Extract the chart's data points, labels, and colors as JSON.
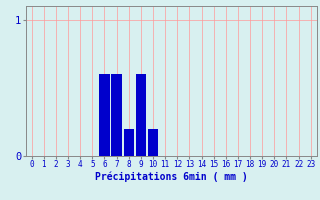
{
  "categories": [
    0,
    1,
    2,
    3,
    4,
    5,
    6,
    7,
    8,
    9,
    10,
    11,
    12,
    13,
    14,
    15,
    16,
    17,
    18,
    19,
    20,
    21,
    22,
    23
  ],
  "values": [
    0,
    0,
    0,
    0,
    0,
    0,
    0.6,
    0.6,
    0.2,
    0.6,
    0.2,
    0,
    0,
    0,
    0,
    0,
    0,
    0,
    0,
    0,
    0,
    0,
    0,
    0
  ],
  "bar_color": "#0000cc",
  "background_color": "#d8f0f0",
  "grid_color_v": "#ff9999",
  "grid_color_h": "#ff9999",
  "xlabel": "Précipitations 6min ( mm )",
  "ylabel": "",
  "ylim": [
    0,
    1.1
  ],
  "xlim": [
    -0.5,
    23.5
  ],
  "yticks": [
    0,
    1
  ],
  "ytick_labels": [
    "0",
    "1"
  ],
  "xticks": [
    0,
    1,
    2,
    3,
    4,
    5,
    6,
    7,
    8,
    9,
    10,
    11,
    12,
    13,
    14,
    15,
    16,
    17,
    18,
    19,
    20,
    21,
    22,
    23
  ],
  "tick_label_color": "#0000cc",
  "xlabel_color": "#0000cc",
  "xlabel_fontsize": 7,
  "tick_fontsize": 5.5,
  "ytick_fontsize": 7.5
}
